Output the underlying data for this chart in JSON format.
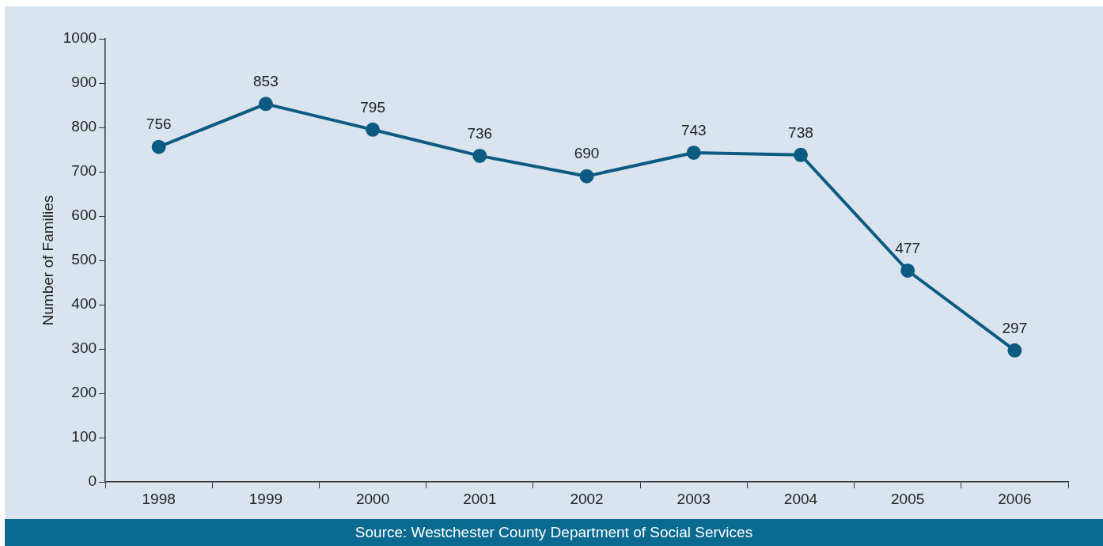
{
  "chart_data": {
    "type": "line",
    "ylabel": "Number of Families",
    "categories": [
      "1998",
      "1999",
      "2000",
      "2001",
      "2002",
      "2003",
      "2004",
      "2005",
      "2006"
    ],
    "values": [
      756,
      853,
      795,
      736,
      690,
      743,
      738,
      477,
      297
    ],
    "color": "#0d5a82",
    "marker": "circle",
    "line_style": "solid",
    "data_labels": true,
    "grid": false,
    "legend": false,
    "ylim": [
      0,
      1000
    ],
    "yticks": [
      0,
      100,
      200,
      300,
      400,
      500,
      600,
      700,
      800,
      900,
      1000
    ],
    "annotations": [
      "Source: Westchester County Department of Social Services"
    ]
  }
}
